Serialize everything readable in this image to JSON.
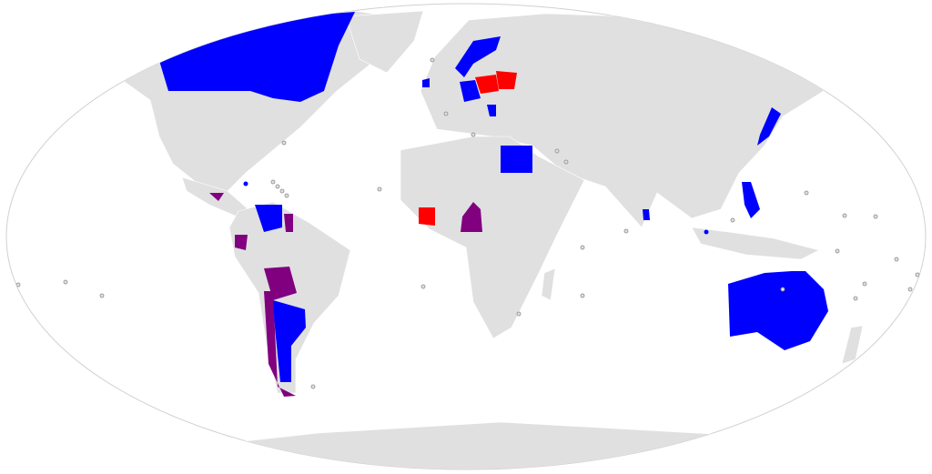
{
  "map": {
    "projection": "Robinson",
    "colors": {
      "ocean": "#ffffff",
      "land": "#e0e0e0",
      "border": "#d0d0d0",
      "category_blue": "#0000ff",
      "category_red": "#ff0000",
      "category_purple": "#800080"
    }
  }
}
